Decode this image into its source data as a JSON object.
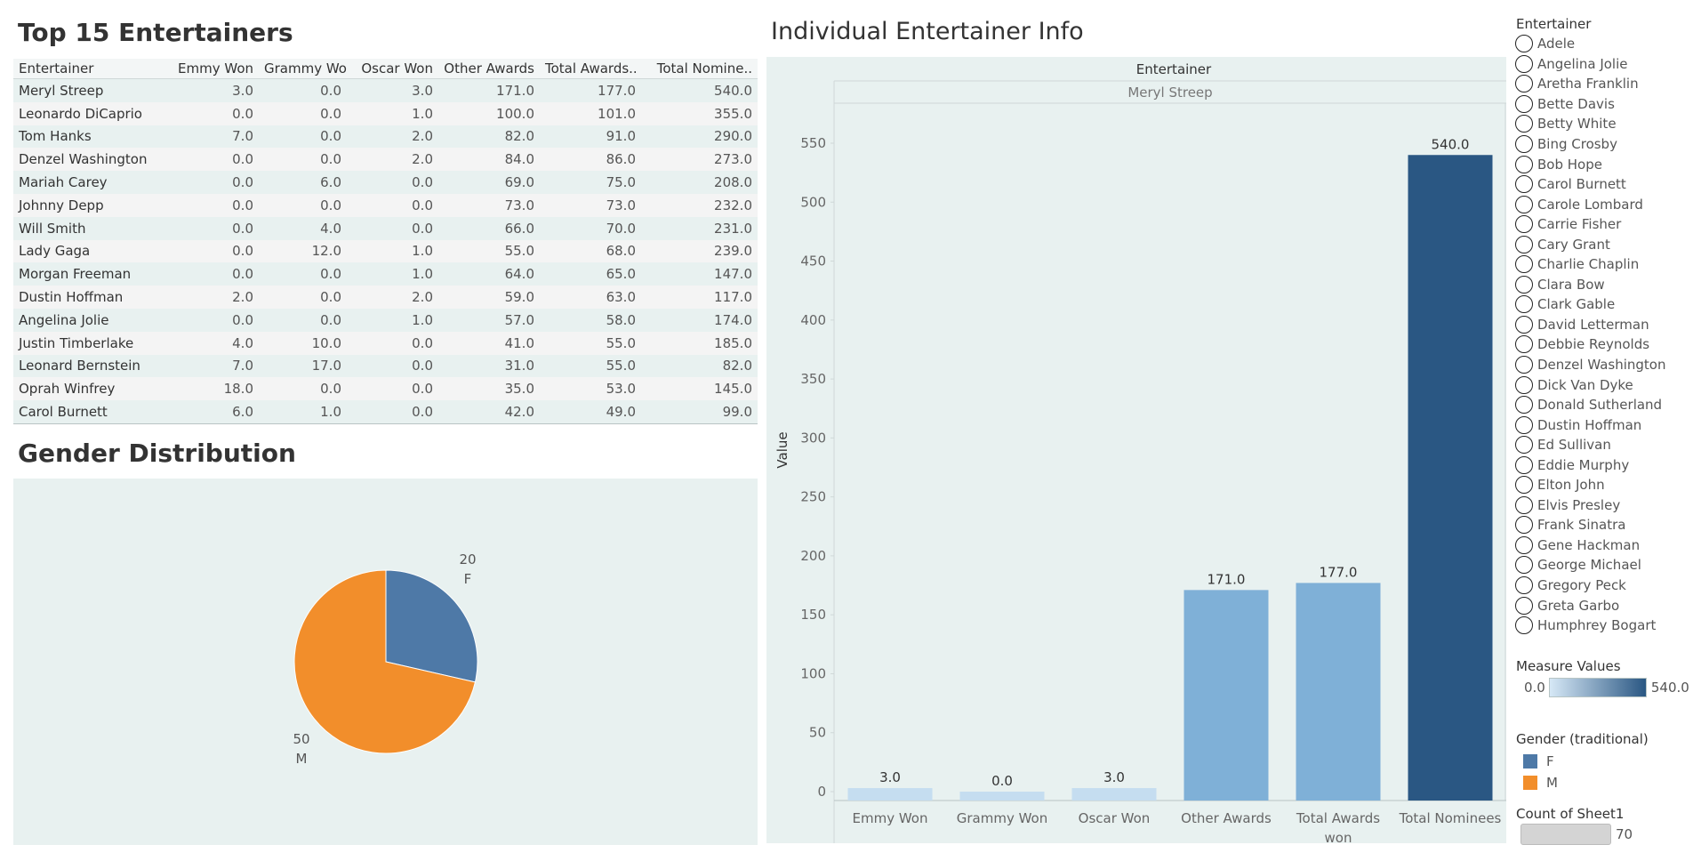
{
  "top15": {
    "title": "Top 15 Entertainers",
    "columns": [
      "Entertainer",
      "Emmy Won",
      "Grammy Won",
      "Oscar Won",
      "Other Awards",
      "Total Awards..",
      "Total Nomine.."
    ],
    "rows": [
      [
        "Meryl Streep",
        "3.0",
        "0.0",
        "3.0",
        "171.0",
        "177.0",
        "540.0"
      ],
      [
        "Leonardo DiCaprio",
        "0.0",
        "0.0",
        "1.0",
        "100.0",
        "101.0",
        "355.0"
      ],
      [
        "Tom Hanks",
        "7.0",
        "0.0",
        "2.0",
        "82.0",
        "91.0",
        "290.0"
      ],
      [
        "Denzel Washington",
        "0.0",
        "0.0",
        "2.0",
        "84.0",
        "86.0",
        "273.0"
      ],
      [
        "Mariah Carey",
        "0.0",
        "6.0",
        "0.0",
        "69.0",
        "75.0",
        "208.0"
      ],
      [
        "Johnny Depp",
        "0.0",
        "0.0",
        "0.0",
        "73.0",
        "73.0",
        "232.0"
      ],
      [
        "Will Smith",
        "0.0",
        "4.0",
        "0.0",
        "66.0",
        "70.0",
        "231.0"
      ],
      [
        "Lady Gaga",
        "0.0",
        "12.0",
        "1.0",
        "55.0",
        "68.0",
        "239.0"
      ],
      [
        "Morgan Freeman",
        "0.0",
        "0.0",
        "1.0",
        "64.0",
        "65.0",
        "147.0"
      ],
      [
        "Dustin Hoffman",
        "2.0",
        "0.0",
        "2.0",
        "59.0",
        "63.0",
        "117.0"
      ],
      [
        "Angelina Jolie",
        "0.0",
        "0.0",
        "1.0",
        "57.0",
        "58.0",
        "174.0"
      ],
      [
        "Justin Timberlake",
        "4.0",
        "10.0",
        "0.0",
        "41.0",
        "55.0",
        "185.0"
      ],
      [
        "Leonard Bernstein",
        "7.0",
        "17.0",
        "0.0",
        "31.0",
        "55.0",
        "82.0"
      ],
      [
        "Oprah Winfrey",
        "18.0",
        "0.0",
        "0.0",
        "35.0",
        "53.0",
        "145.0"
      ],
      [
        "Carol Burnett",
        "6.0",
        "1.0",
        "0.0",
        "42.0",
        "49.0",
        "99.0"
      ]
    ]
  },
  "gender_title": "Gender Distribution",
  "individual_title": "Individual Entertainer Info",
  "chart_data": [
    {
      "type": "table",
      "title": "Top 15 Entertainers"
    },
    {
      "type": "pie",
      "title": "Gender Distribution",
      "slices": [
        {
          "label": "F",
          "value": 20,
          "color": "#4e79a7"
        },
        {
          "label": "M",
          "value": 50,
          "color": "#f28e2b"
        }
      ]
    },
    {
      "type": "bar",
      "title": "Individual Entertainer Info",
      "header": "Entertainer",
      "subheader": "Meryl Streep",
      "categories": [
        [
          "Emmy Won"
        ],
        [
          "Grammy Won"
        ],
        [
          "Oscar Won"
        ],
        [
          "Other Awards"
        ],
        [
          "Total Awards",
          "won"
        ],
        [
          "Total Nominees"
        ]
      ],
      "values": [
        3.0,
        0.0,
        3.0,
        171.0,
        177.0,
        540.0
      ],
      "labels": [
        "3.0",
        "0.0",
        "3.0",
        "171.0",
        "177.0",
        "540.0"
      ],
      "ylabel": "Value",
      "yticks": [
        0,
        50,
        100,
        150,
        200,
        250,
        300,
        350,
        400,
        450,
        500,
        550
      ],
      "ylim": [
        0,
        550
      ],
      "color_scale": {
        "min": 0,
        "max": 540,
        "low": "#c6dbef",
        "high": "#2a5783"
      }
    }
  ],
  "legend": {
    "entertainer_title": "Entertainer",
    "entertainers": [
      "Adele",
      "Angelina Jolie",
      "Aretha Franklin",
      "Bette Davis",
      "Betty White",
      "Bing Crosby",
      "Bob Hope",
      "Carol Burnett",
      "Carole Lombard",
      "Carrie Fisher",
      "Cary Grant",
      "Charlie Chaplin",
      "Clara Bow",
      "Clark Gable",
      "David Letterman",
      "Debbie Reynolds",
      "Denzel Washington",
      "Dick Van Dyke",
      "Donald Sutherland",
      "Dustin Hoffman",
      "Ed Sullivan",
      "Eddie Murphy",
      "Elton John",
      "Elvis Presley",
      "Frank Sinatra",
      "Gene Hackman",
      "George Michael",
      "Gregory Peck",
      "Greta Garbo",
      "Humphrey Bogart"
    ],
    "measure_title": "Measure Values",
    "measure_min": "0.0",
    "measure_max": "540.0",
    "gender_title": "Gender (traditional)",
    "gender_items": [
      {
        "label": "F",
        "color": "#4e79a7"
      },
      {
        "label": "M",
        "color": "#f28e2b"
      }
    ],
    "count_title": "Count of Sheet1",
    "count_value": "70"
  }
}
